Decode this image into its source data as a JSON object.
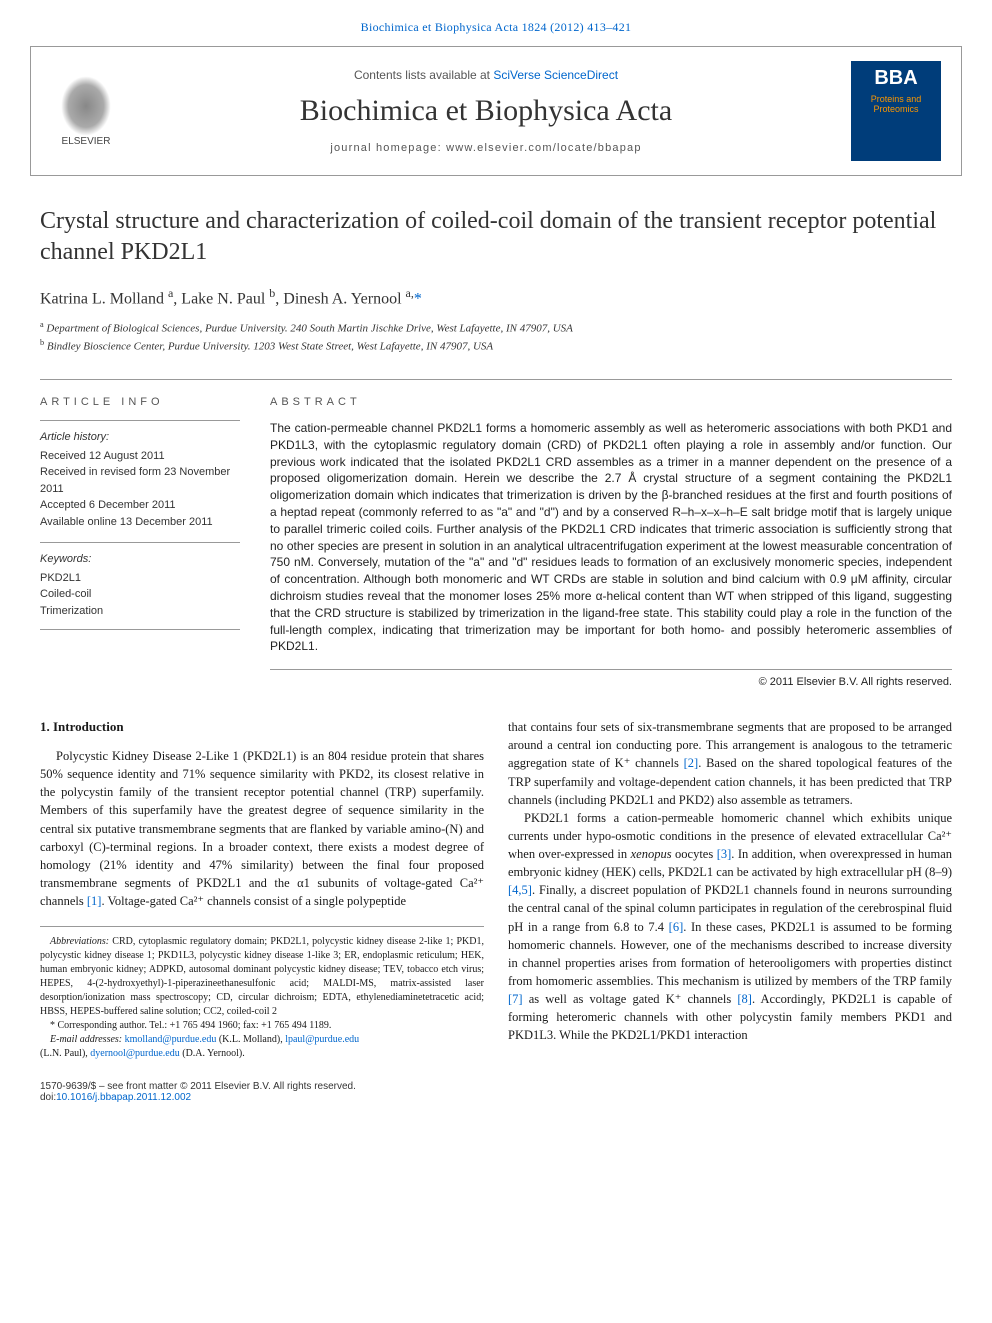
{
  "header": {
    "journal_ref": "Biochimica et Biophysica Acta 1824 (2012) 413–421",
    "contents_text": "Contents lists available at ",
    "contents_link": "SciVerse ScienceDirect",
    "journal_title": "Biochimica et Biophysica Acta",
    "homepage_label": "journal homepage: www.elsevier.com/locate/bbapap",
    "elsevier": "ELSEVIER",
    "bba": "BBA",
    "bba_sub": "Proteins and Proteomics"
  },
  "title": "Crystal structure and characterization of coiled-coil domain of the transient receptor potential channel PKD2L1",
  "authors_html": "Katrina L. Molland <sup>a</sup>, Lake N. Paul <sup>b</sup>, Dinesh A. Yernool <sup>a,</sup><span class='star'>*</span>",
  "affiliations": {
    "a": "Department of Biological Sciences, Purdue University. 240 South Martin Jischke Drive, West Lafayette, IN 47907, USA",
    "b": "Bindley Bioscience Center, Purdue University. 1203 West State Street, West Lafayette, IN 47907, USA"
  },
  "article_info": {
    "heading": "ARTICLE INFO",
    "history_label": "Article history:",
    "received": "Received 12 August 2011",
    "revised": "Received in revised form 23 November 2011",
    "accepted": "Accepted 6 December 2011",
    "online": "Available online 13 December 2011",
    "keywords_label": "Keywords:",
    "keywords": [
      "PKD2L1",
      "Coiled-coil",
      "Trimerization"
    ]
  },
  "abstract": {
    "heading": "ABSTRACT",
    "text": "The cation-permeable channel PKD2L1 forms a homomeric assembly as well as heteromeric associations with both PKD1 and PKD1L3, with the cytoplasmic regulatory domain (CRD) of PKD2L1 often playing a role in assembly and/or function. Our previous work indicated that the isolated PKD2L1 CRD assembles as a trimer in a manner dependent on the presence of a proposed oligomerization domain. Herein we describe the 2.7 Å crystal structure of a segment containing the PKD2L1 oligomerization domain which indicates that trimerization is driven by the β-branched residues at the first and fourth positions of a heptad repeat (commonly referred to as \"a\" and \"d\") and by a conserved R–h–x–x–h–E salt bridge motif that is largely unique to parallel trimeric coiled coils. Further analysis of the PKD2L1 CRD indicates that trimeric association is sufficiently strong that no other species are present in solution in an analytical ultracentrifugation experiment at the lowest measurable concentration of 750 nM. Conversely, mutation of the \"a\" and \"d\" residues leads to formation of an exclusively monomeric species, independent of concentration. Although both monomeric and WT CRDs are stable in solution and bind calcium with 0.9 μM affinity, circular dichroism studies reveal that the monomer loses 25% more α-helical content than WT when stripped of this ligand, suggesting that the CRD structure is stabilized by trimerization in the ligand-free state. This stability could play a role in the function of the full-length complex, indicating that trimerization may be important for both homo- and possibly heteromeric assemblies of PKD2L1.",
    "copyright": "© 2011 Elsevier B.V. All rights reserved."
  },
  "intro": {
    "heading": "1. Introduction",
    "col1_p1": "Polycystic Kidney Disease 2-Like 1 (PKD2L1) is an 804 residue protein that shares 50% sequence identity and 71% sequence similarity with PKD2, its closest relative in the polycystin family of the transient receptor potential channel (TRP) superfamily. Members of this superfamily have the greatest degree of sequence similarity in the central six putative transmembrane segments that are flanked by variable amino-(N) and carboxyl (C)-terminal regions. In a broader context, there exists a modest degree of homology (21% identity and 47% similarity) between the final four proposed transmembrane segments of PKD2L1 and the α1 subunits of voltage-gated Ca²⁺ channels ",
    "ref1": "[1]",
    "col1_p1_tail": ". Voltage-gated Ca²⁺ channels consist of a single polypeptide",
    "col2_p1a": "that contains four sets of six-transmembrane segments that are proposed to be arranged around a central ion conducting pore. This arrangement is analogous to the tetrameric aggregation state of K⁺ channels ",
    "ref2": "[2]",
    "col2_p1b": ". Based on the shared topological features of the TRP superfamily and voltage-dependent cation channels, it has been predicted that TRP channels (including PKD2L1 and PKD2) also assemble as tetramers.",
    "col2_p2a": "PKD2L1 forms a cation-permeable homomeric channel which exhibits unique currents under hypo-osmotic conditions in the presence of elevated extracellular Ca²⁺ when over-expressed in ",
    "xenopus": "xenopus",
    "col2_p2b": " oocytes ",
    "ref3": "[3]",
    "col2_p2c": ". In addition, when overexpressed in human embryonic kidney (HEK) cells, PKD2L1 can be activated by high extracellular pH (8–9) ",
    "ref45": "[4,5]",
    "col2_p2d": ". Finally, a discreet population of PKD2L1 channels found in neurons surrounding the central canal of the spinal column participates in regulation of the cerebrospinal fluid pH in a range from 6.8 to 7.4 ",
    "ref6": "[6]",
    "col2_p2e": ". In these cases, PKD2L1 is assumed to be forming homomeric channels. However, one of the mechanisms described to increase diversity in channel properties arises from formation of heterooligomers with properties distinct from homomeric assemblies. This mechanism is utilized by members of the TRP family ",
    "ref7": "[7]",
    "col2_p2f": " as well as voltage gated K⁺ channels ",
    "ref8": "[8]",
    "col2_p2g": ". Accordingly, PKD2L1 is capable of forming heteromeric channels with other polycystin family members PKD1 and PKD1L3. While the PKD2L1/PKD1 interaction"
  },
  "footnotes": {
    "abbr_label": "Abbreviations:",
    "abbr": " CRD, cytoplasmic regulatory domain; PKD2L1, polycystic kidney disease 2-like 1; PKD1, polycystic kidney disease 1; PKD1L3, polycystic kidney disease 1-like 3; ER, endoplasmic reticulum; HEK, human embryonic kidney; ADPKD, autosomal dominant polycystic kidney disease; TEV, tobacco etch virus; HEPES, 4-(2-hydroxyethyl)-1-piperazineethanesulfonic acid; MALDI-MS, matrix-assisted laser desorption/ionization mass spectroscopy; CD, circular dichroism; EDTA, ethylenediaminetetracetic acid; HBSS, HEPES-buffered saline solution; CC2, coiled-coil 2",
    "corr": "* Corresponding author. Tel.: +1 765 494 1960; fax: +1 765 494 1189.",
    "emails_label": "E-mail addresses:",
    "email1": "kmolland@purdue.edu",
    "email1_who": " (K.L. Molland), ",
    "email2": "lpaul@purdue.edu",
    "email2_who": " (L.N. Paul), ",
    "email3": "dyernool@purdue.edu",
    "email3_who": " (D.A. Yernool)."
  },
  "bottom": {
    "line1": "1570-9639/$ – see front matter © 2011 Elsevier B.V. All rights reserved.",
    "doi_label": "doi:",
    "doi": "10.1016/j.bbapap.2011.12.002"
  },
  "colors": {
    "link": "#0066cc",
    "rule": "#999999",
    "text": "#1a1a1a",
    "bba_bg": "#003d7a",
    "bba_accent": "#fa9600"
  }
}
